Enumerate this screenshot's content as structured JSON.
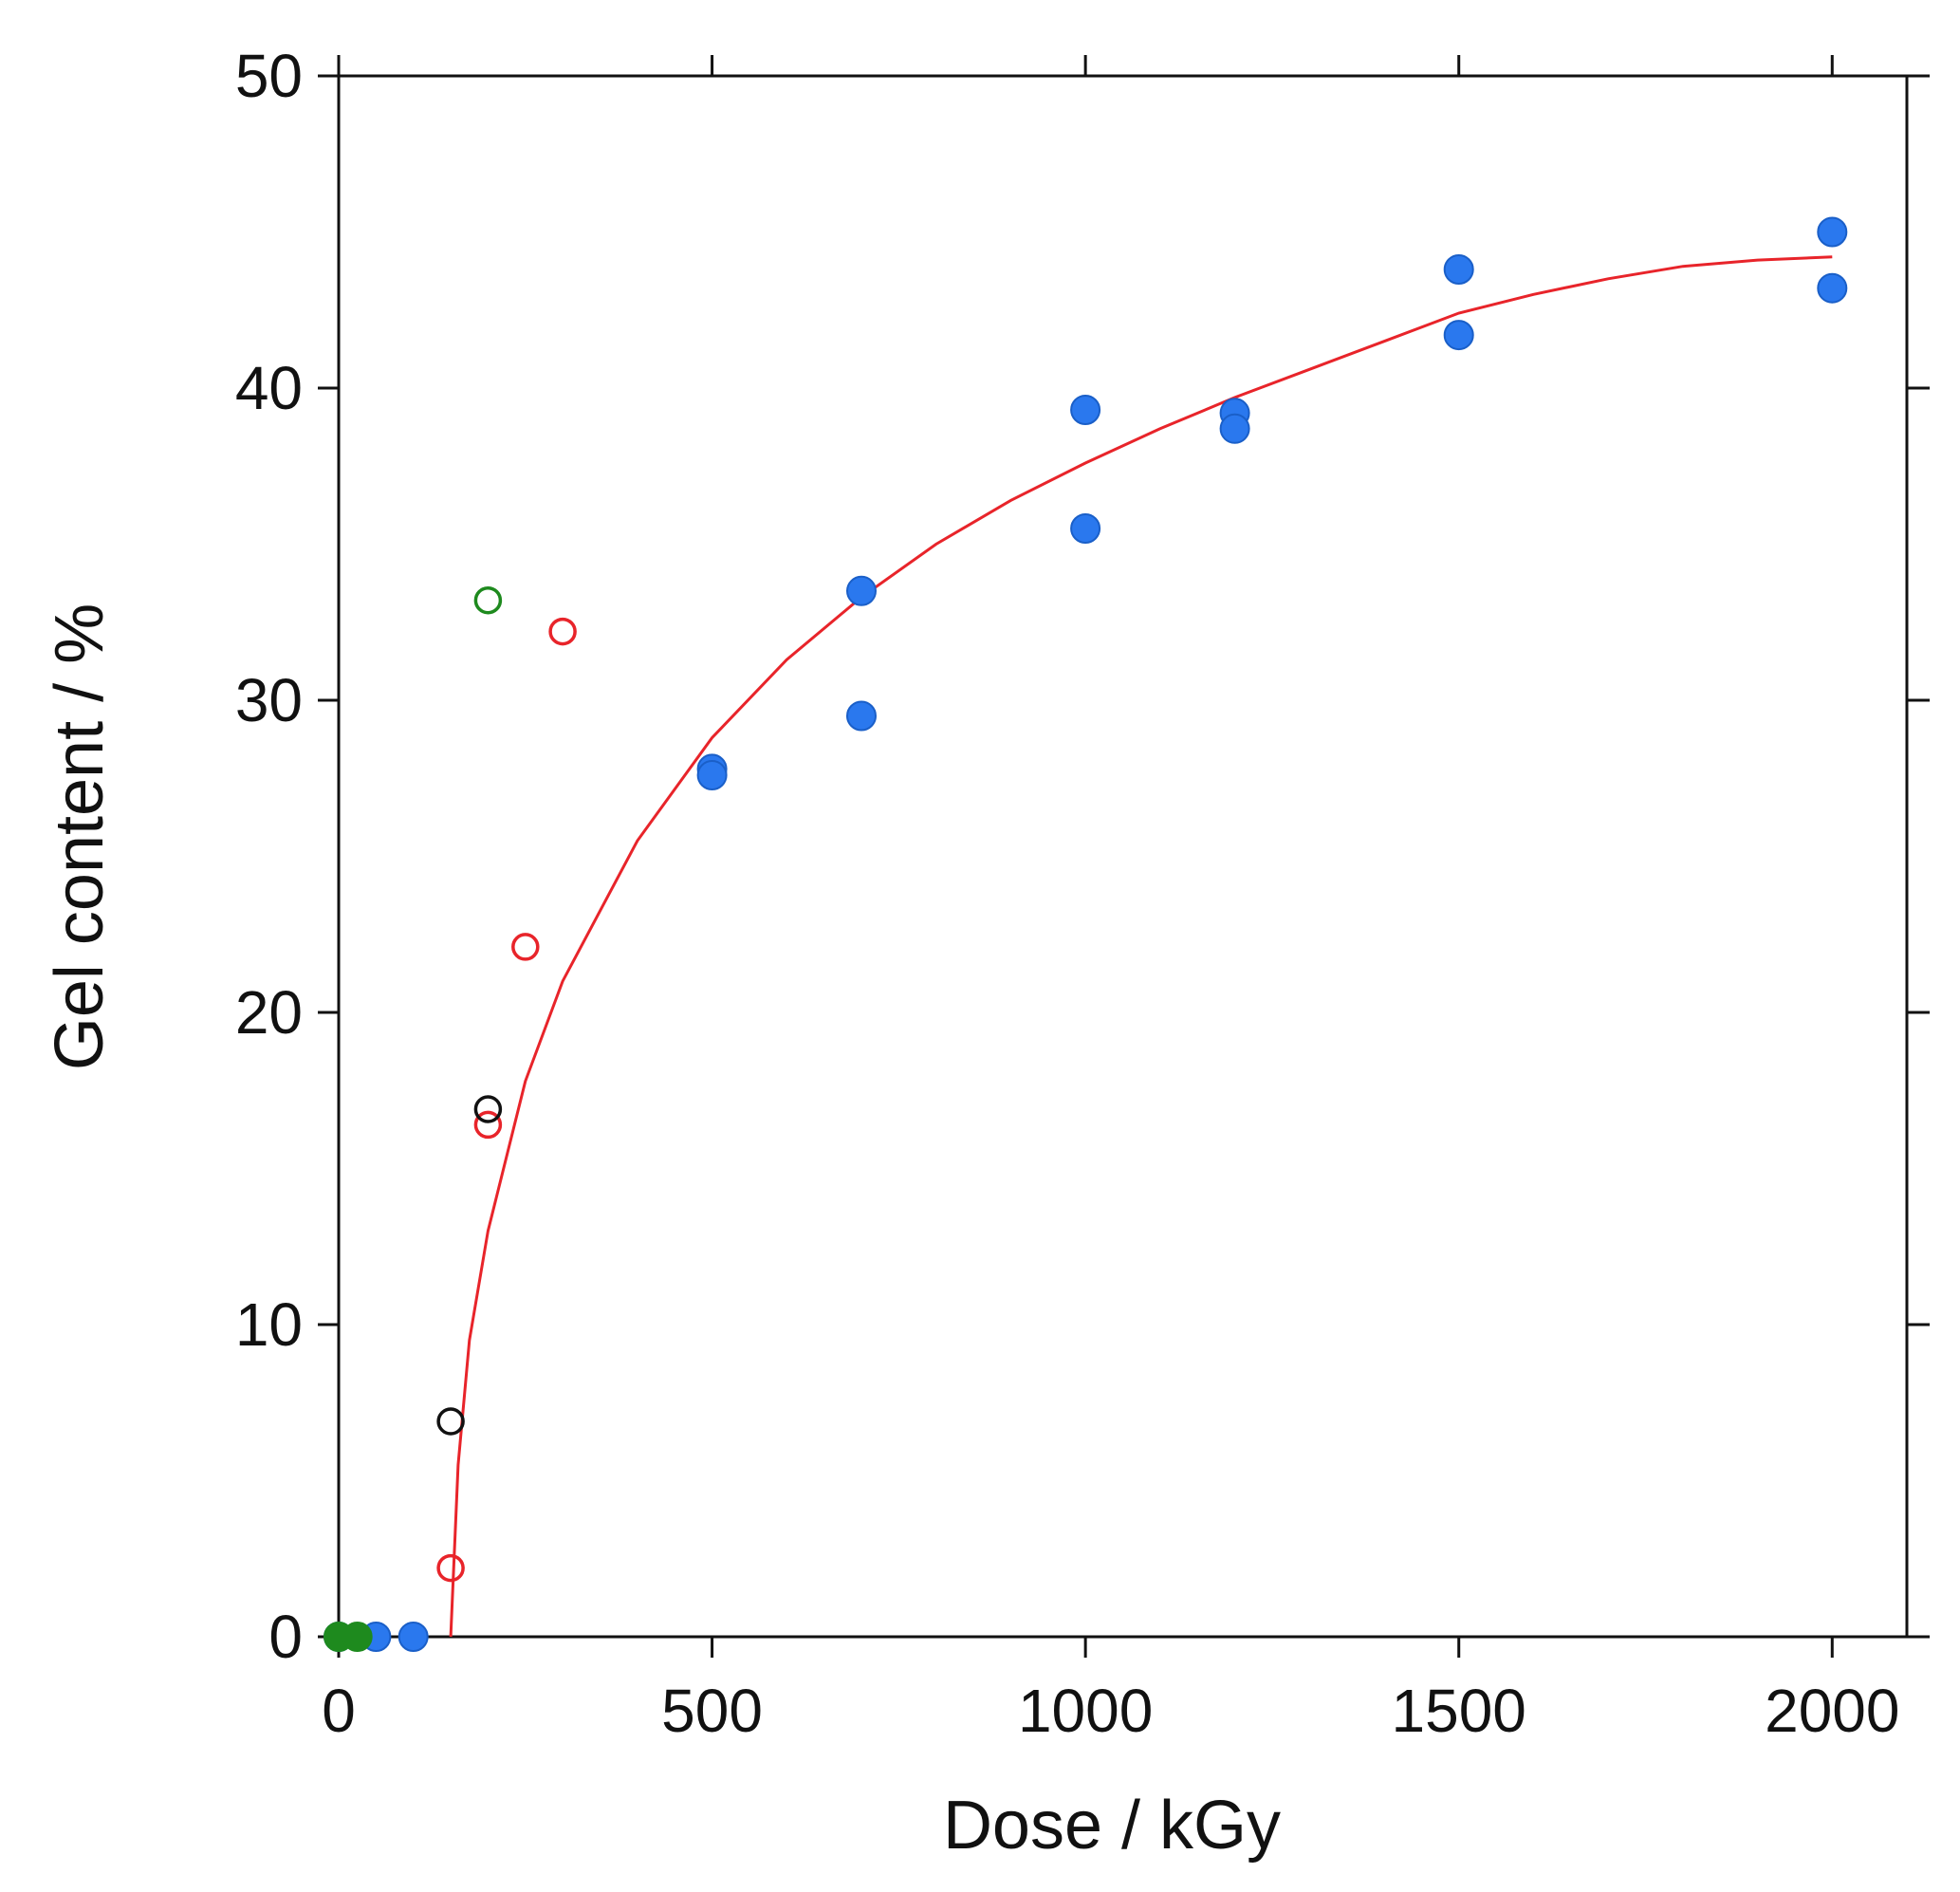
{
  "chart_data": {
    "type": "scatter",
    "title": "",
    "xlabel": "Dose / kGy",
    "ylabel": "Gel content / %",
    "xlim": [
      0,
      2100
    ],
    "ylim": [
      0,
      50
    ],
    "x_ticks": [
      0,
      500,
      1000,
      1500,
      2000
    ],
    "y_ticks": [
      0,
      10,
      20,
      30,
      40,
      50
    ],
    "grid": false,
    "legend": "none",
    "series": [
      {
        "marker": "filled-circle",
        "color": "#2a78ee",
        "points": [
          [
            0,
            0
          ],
          [
            50,
            0
          ],
          [
            100,
            0
          ],
          [
            500,
            27.8
          ],
          [
            500,
            27.6
          ],
          [
            700,
            33.5
          ],
          [
            700,
            29.5
          ],
          [
            1000,
            39.3
          ],
          [
            1000,
            35.5
          ],
          [
            1200,
            39.2
          ],
          [
            1200,
            38.7
          ],
          [
            1500,
            43.8
          ],
          [
            1500,
            41.7
          ],
          [
            2000,
            45.0
          ],
          [
            2000,
            43.2
          ]
        ]
      },
      {
        "marker": "open-circle",
        "color": "#e8242a",
        "points": [
          [
            150,
            2.2
          ],
          [
            200,
            16.4
          ],
          [
            250,
            22.1
          ],
          [
            300,
            32.2
          ]
        ]
      },
      {
        "marker": "open-circle",
        "color": "#111111",
        "points": [
          [
            150,
            6.9
          ],
          [
            200,
            16.9
          ]
        ]
      },
      {
        "marker": "open-circle",
        "color": "#1e8a1e",
        "points": [
          [
            200,
            33.2
          ]
        ]
      },
      {
        "marker": "filled-circle",
        "color": "#1e8a1e",
        "points": [
          [
            0,
            0
          ],
          [
            25,
            0
          ]
        ]
      }
    ],
    "fit_curve": {
      "type": "line",
      "color": "#e8242a",
      "points": [
        [
          150,
          0
        ],
        [
          160,
          5.5
        ],
        [
          175,
          9.5
        ],
        [
          200,
          13.0
        ],
        [
          250,
          17.8
        ],
        [
          300,
          21.0
        ],
        [
          400,
          25.5
        ],
        [
          500,
          28.8
        ],
        [
          600,
          31.3
        ],
        [
          700,
          33.3
        ],
        [
          800,
          35.0
        ],
        [
          900,
          36.4
        ],
        [
          1000,
          37.6
        ],
        [
          1100,
          38.7
        ],
        [
          1200,
          39.7
        ],
        [
          1300,
          40.6
        ],
        [
          1400,
          41.5
        ],
        [
          1500,
          42.4
        ],
        [
          1600,
          43.0
        ],
        [
          1700,
          43.5
        ],
        [
          1800,
          43.9
        ],
        [
          1900,
          44.1
        ],
        [
          2000,
          44.2
        ]
      ]
    }
  }
}
